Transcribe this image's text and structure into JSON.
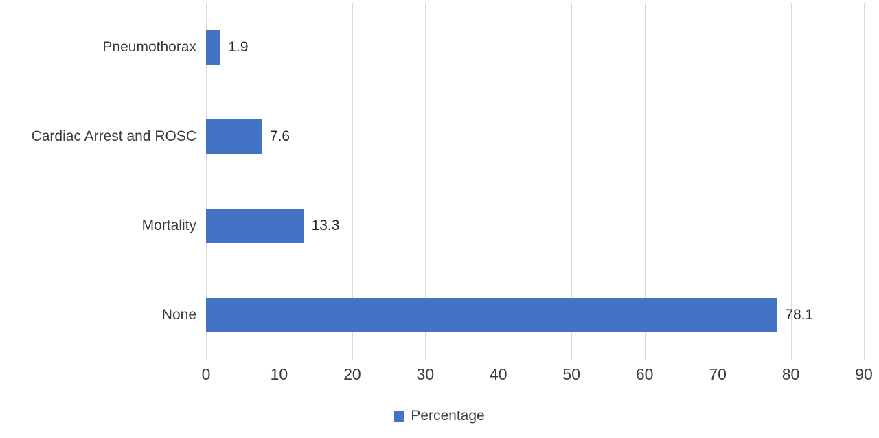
{
  "chart_data": {
    "type": "bar",
    "orientation": "horizontal",
    "title": "",
    "xlabel": "",
    "ylabel": "",
    "categories": [
      "Pneumothorax",
      "Cardiac Arrest and ROSC",
      "Mortality",
      "None"
    ],
    "values": [
      1.9,
      7.6,
      13.3,
      78.1
    ],
    "value_labels": [
      "1.9",
      "7.6",
      "13.3",
      "78.1"
    ],
    "series_name": "Percentage",
    "xlim": [
      0,
      90
    ],
    "xticks": [
      0,
      10,
      20,
      30,
      40,
      50,
      60,
      70,
      80,
      90
    ],
    "bar_color": "#4472C4",
    "gridline_color": "#D9D9D9",
    "grid": true,
    "legend_position": "bottom"
  }
}
